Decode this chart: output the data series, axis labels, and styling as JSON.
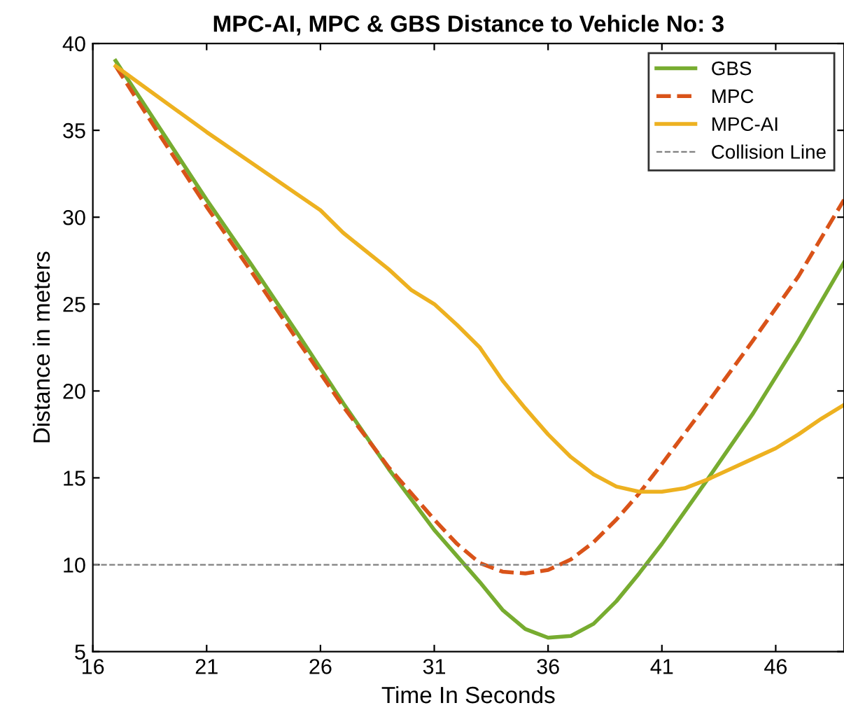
{
  "chart_data": {
    "type": "line",
    "title": "MPC-AI, MPC & GBS Distance to Vehicle No: 3",
    "xlabel": "Time In Seconds",
    "ylabel": "Distance in meters",
    "xlim": [
      16,
      49
    ],
    "ylim": [
      5,
      40
    ],
    "xticks": [
      16,
      21,
      26,
      31,
      36,
      41,
      46
    ],
    "yticks": [
      5,
      10,
      15,
      20,
      25,
      30,
      35,
      40
    ],
    "grid": false,
    "legend": "top right",
    "marker": "none",
    "series": [
      {
        "name": "GBS",
        "color": "#77ac30",
        "line_style": "solid",
        "x": [
          17,
          19,
          21,
          23,
          25,
          27,
          29,
          31,
          33,
          34,
          35,
          36,
          37,
          38,
          39,
          40,
          41,
          43,
          45,
          47,
          49
        ],
        "values": [
          39,
          35,
          31,
          27.2,
          23.3,
          19.3,
          15.5,
          12,
          9,
          7.4,
          6.3,
          5.8,
          5.9,
          6.6,
          7.9,
          9.5,
          11.2,
          14.9,
          18.7,
          22.9,
          27.4
        ]
      },
      {
        "name": "MPC",
        "color": "#d95319",
        "line_style": "dashed",
        "x": [
          17,
          19,
          21,
          23,
          25,
          27,
          29,
          31,
          32,
          33,
          34,
          35,
          36,
          37,
          38,
          39,
          40,
          41,
          43,
          45,
          47,
          49
        ],
        "values": [
          38.7,
          34.6,
          30.6,
          26.8,
          22.9,
          19.1,
          15.6,
          12.6,
          11.2,
          10.1,
          9.6,
          9.5,
          9.7,
          10.3,
          11.3,
          12.6,
          14.1,
          15.8,
          19.3,
          22.9,
          26.6,
          31
        ]
      },
      {
        "name": "MPC-AI",
        "color": "#edb120",
        "line_style": "solid",
        "x": [
          17,
          19,
          21,
          23,
          25,
          26,
          27,
          29,
          30,
          31,
          32,
          33,
          34,
          35,
          36,
          37,
          38,
          39,
          40,
          41,
          42,
          43,
          44,
          45,
          46,
          47,
          48,
          49
        ],
        "values": [
          38.7,
          36.8,
          34.9,
          33.1,
          31.3,
          30.4,
          29.1,
          27,
          25.8,
          25,
          23.8,
          22.5,
          20.6,
          19,
          17.5,
          16.2,
          15.2,
          14.5,
          14.2,
          14.2,
          14.4,
          14.9,
          15.5,
          16.1,
          16.7,
          17.5,
          18.4,
          19.2
        ]
      }
    ],
    "ref_lines": [
      {
        "axis": "y",
        "value": 10,
        "label": "Collision Line",
        "color": "#808080",
        "line_style": "dashed"
      }
    ]
  }
}
